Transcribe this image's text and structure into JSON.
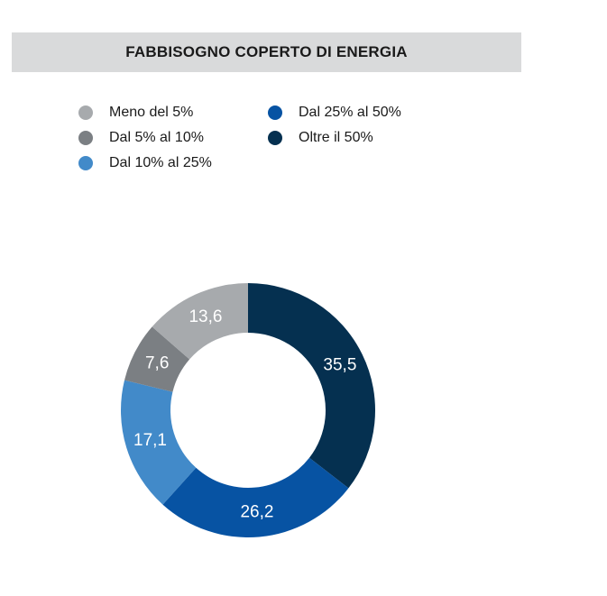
{
  "chart_data": {
    "type": "pie",
    "title": "FABBISOGNO COPERTO DI ENERGIA",
    "categories": [
      "Oltre il 50%",
      "Dal 25% al 50%",
      "Dal 10% al 25%",
      "Dal 5% al 10%",
      "Meno del 5%"
    ],
    "values": [
      35.5,
      26.2,
      17.1,
      7.6,
      13.6
    ],
    "value_labels": [
      "35,5",
      "26,2",
      "17,1",
      "7,6",
      "13,6"
    ],
    "colors": [
      "#053050",
      "#0753a3",
      "#428ac9",
      "#7b7f83",
      "#a7aaad"
    ],
    "donut": true,
    "legend_position": "top",
    "legend": [
      {
        "label": "Meno del 5%",
        "color": "#a7aaad"
      },
      {
        "label": "Dal 5% al 10%",
        "color": "#7b7f83"
      },
      {
        "label": "Dal 10% al 25%",
        "color": "#428ac9"
      },
      {
        "label": "Dal 25% al 50%",
        "color": "#0753a3"
      },
      {
        "label": "Oltre il 50%",
        "color": "#053050"
      }
    ]
  }
}
